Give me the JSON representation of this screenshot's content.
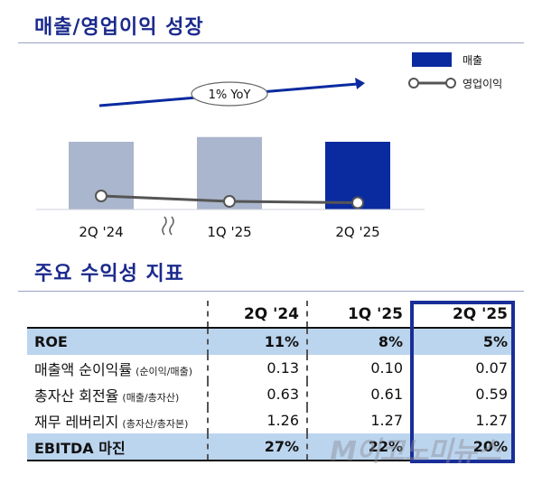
{
  "section1_title": "매출/영업이익 성장",
  "section2_title": "주요 수익성 지표",
  "chart_data": {
    "type": "bar",
    "categories": [
      "2Q '24",
      "1Q '25",
      "2Q '25"
    ],
    "series": [
      {
        "name": "매출",
        "type": "bar",
        "values": [
          100,
          107,
          100
        ],
        "colors": [
          "#aab6cd",
          "#aab6cd",
          "#0a2aa0"
        ]
      },
      {
        "name": "영업이익",
        "type": "line",
        "values": [
          20,
          12,
          10
        ]
      }
    ],
    "annotation": "1% YoY",
    "axis_break_between": [
      "2Q '24",
      "1Q '25"
    ]
  },
  "table": {
    "columns": [
      "",
      "2Q '24",
      "1Q '25",
      "2Q '25"
    ],
    "rows": [
      {
        "label": "ROE",
        "sub": "",
        "values": [
          "11%",
          "8%",
          "5%"
        ],
        "highlight": true
      },
      {
        "label": "매출액 순이익률",
        "sub": "(순이익/매출)",
        "values": [
          "0.13",
          "0.10",
          "0.07"
        ],
        "highlight": false
      },
      {
        "label": "총자산 회전율",
        "sub": "(매출/총자산)",
        "values": [
          "0.63",
          "0.61",
          "0.59"
        ],
        "highlight": false
      },
      {
        "label": "재무 레버리지",
        "sub": "(총자산/총자본)",
        "values": [
          "1.26",
          "1.27",
          "1.27"
        ],
        "highlight": false
      },
      {
        "label": "EBITDA 마진",
        "sub": "",
        "values": [
          "27%",
          "22%",
          "20%"
        ],
        "highlight": true
      }
    ]
  },
  "watermark": "M이코노미뉴스",
  "colors": {
    "accent": "#0a2aa0",
    "bar_gray": "#aab6cd",
    "highlight_row": "#bcd5ee",
    "title": "#1b2a8c"
  }
}
